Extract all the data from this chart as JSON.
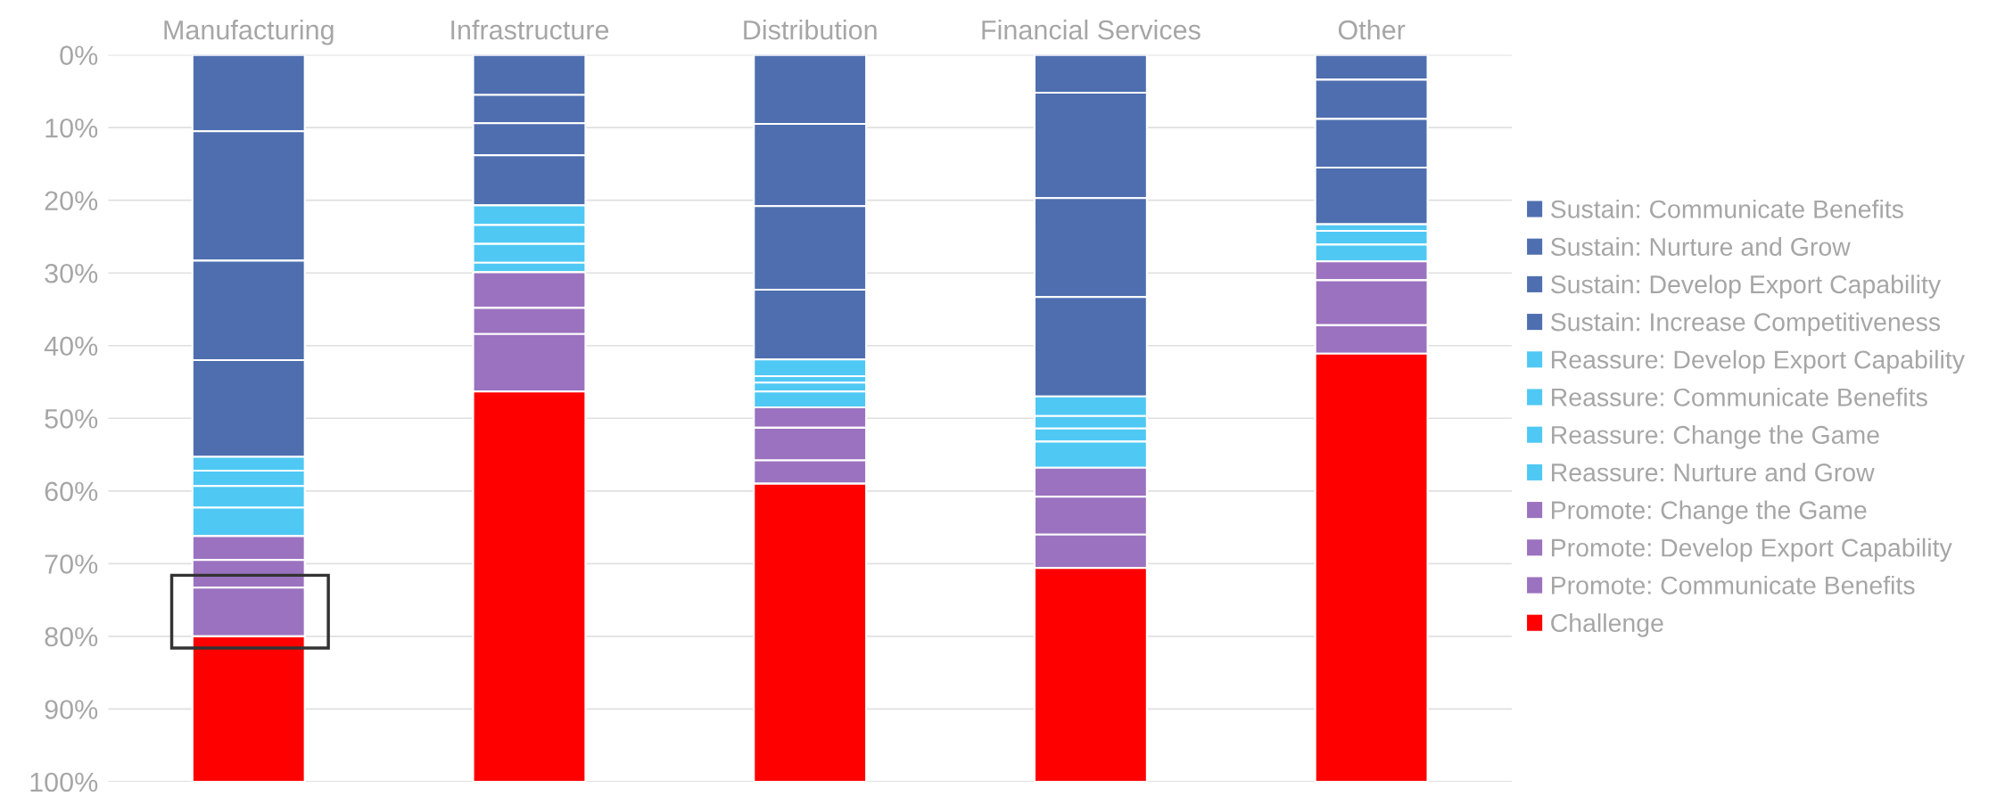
{
  "chart_data": {
    "type": "bar",
    "stacked": true,
    "categories": [
      "Manufacturing",
      "Infrastructure",
      "Distribution",
      "Financial Services",
      "Other"
    ],
    "ylim": [
      100,
      0
    ],
    "yticks": [
      {
        "value": 0,
        "label": "0%"
      },
      {
        "value": 10,
        "label": "10%"
      },
      {
        "value": 20,
        "label": "20%"
      },
      {
        "value": 30,
        "label": "30%"
      },
      {
        "value": 40,
        "label": "40%"
      },
      {
        "value": 50,
        "label": "50%"
      },
      {
        "value": 60,
        "label": "60%"
      },
      {
        "value": 70,
        "label": "70%"
      },
      {
        "value": 80,
        "label": "80%"
      },
      {
        "value": 90,
        "label": "90%"
      },
      {
        "value": 100,
        "label": "100%"
      }
    ],
    "grid": "y",
    "legend": "right",
    "series": [
      {
        "name": "Sustain: Communicate Benefits",
        "color": "#4e6eaf",
        "values": [
          10.5,
          5.5,
          9.5,
          5.2,
          3.4
        ]
      },
      {
        "name": "Sustain: Nurture and Grow",
        "color": "#4e6eaf",
        "values": [
          17.8,
          3.9,
          11.3,
          14.5,
          5.4
        ]
      },
      {
        "name": "Sustain: Develop Export Capability",
        "color": "#4e6eaf",
        "values": [
          13.7,
          4.4,
          11.5,
          13.6,
          6.7
        ]
      },
      {
        "name": "Sustain: Increase Competitiveness",
        "color": "#4e6eaf",
        "values": [
          13.3,
          6.9,
          9.6,
          13.7,
          7.8
        ]
      },
      {
        "name": "Reassure: Develop Export Capability",
        "color": "#4fc8f4",
        "values": [
          1.9,
          2.7,
          2.3,
          2.7,
          0.9
        ]
      },
      {
        "name": "Reassure: Communicate Benefits",
        "color": "#4fc8f4",
        "values": [
          2.1,
          2.6,
          0.9,
          1.7,
          1.9
        ]
      },
      {
        "name": "Reassure: Change the Game",
        "color": "#4fc8f4",
        "values": [
          3.0,
          2.6,
          1.2,
          1.8,
          2.3
        ]
      },
      {
        "name": "Reassure: Nurture and Grow",
        "color": "#4fc8f4",
        "values": [
          3.9,
          1.3,
          2.2,
          3.6,
          0
        ]
      },
      {
        "name": "Promote: Change the Game",
        "color": "#9b72bf",
        "values": [
          3.3,
          4.9,
          2.8,
          4.0,
          2.6
        ]
      },
      {
        "name": "Promote: Develop Export Capability",
        "color": "#9b72bf",
        "values": [
          3.8,
          3.6,
          4.5,
          5.2,
          6.2
        ]
      },
      {
        "name": "Promote: Communicate Benefits",
        "color": "#9b72bf",
        "values": [
          6.7,
          7.9,
          3.2,
          4.6,
          3.9
        ]
      },
      {
        "name": "Challenge",
        "color": "#ff0000",
        "values": [
          20.0,
          53.7,
          41.0,
          29.4,
          58.9
        ]
      }
    ]
  }
}
